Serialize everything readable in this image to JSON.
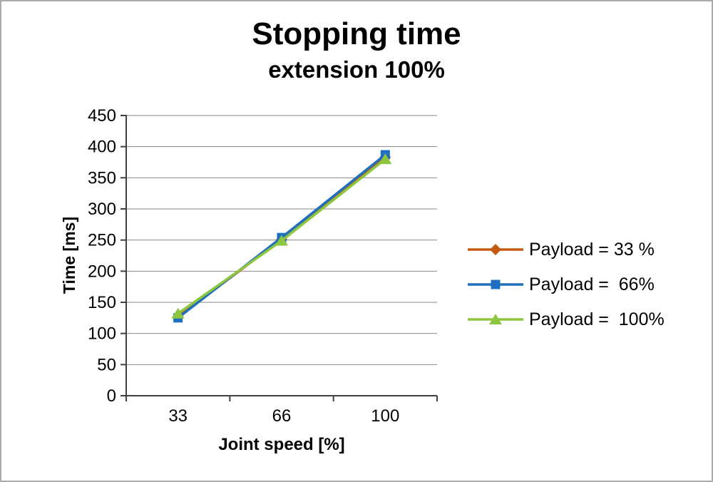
{
  "title": "Stopping time",
  "subtitle": "extension 100%",
  "chart_data": {
    "type": "line",
    "categories": [
      "33",
      "66",
      "100"
    ],
    "series": [
      {
        "name": "Payload = 33 %",
        "values": [
          127,
          251,
          383
        ],
        "color": "#C45911",
        "marker": "diamond"
      },
      {
        "name": "Payload =  66%",
        "values": [
          125,
          254,
          387
        ],
        "color": "#1F6FC0",
        "marker": "square"
      },
      {
        "name": "Payload =  100%",
        "values": [
          132,
          249,
          380
        ],
        "color": "#8DC63F",
        "marker": "triangle"
      }
    ],
    "xlabel": "Joint speed [%]",
    "ylabel": "Time [ms]",
    "ylim": [
      0,
      450
    ],
    "ytick_step": 50,
    "grid": "horizontal",
    "grid_color": "#878787",
    "axis_color": "#404040",
    "legend_position": "right"
  }
}
